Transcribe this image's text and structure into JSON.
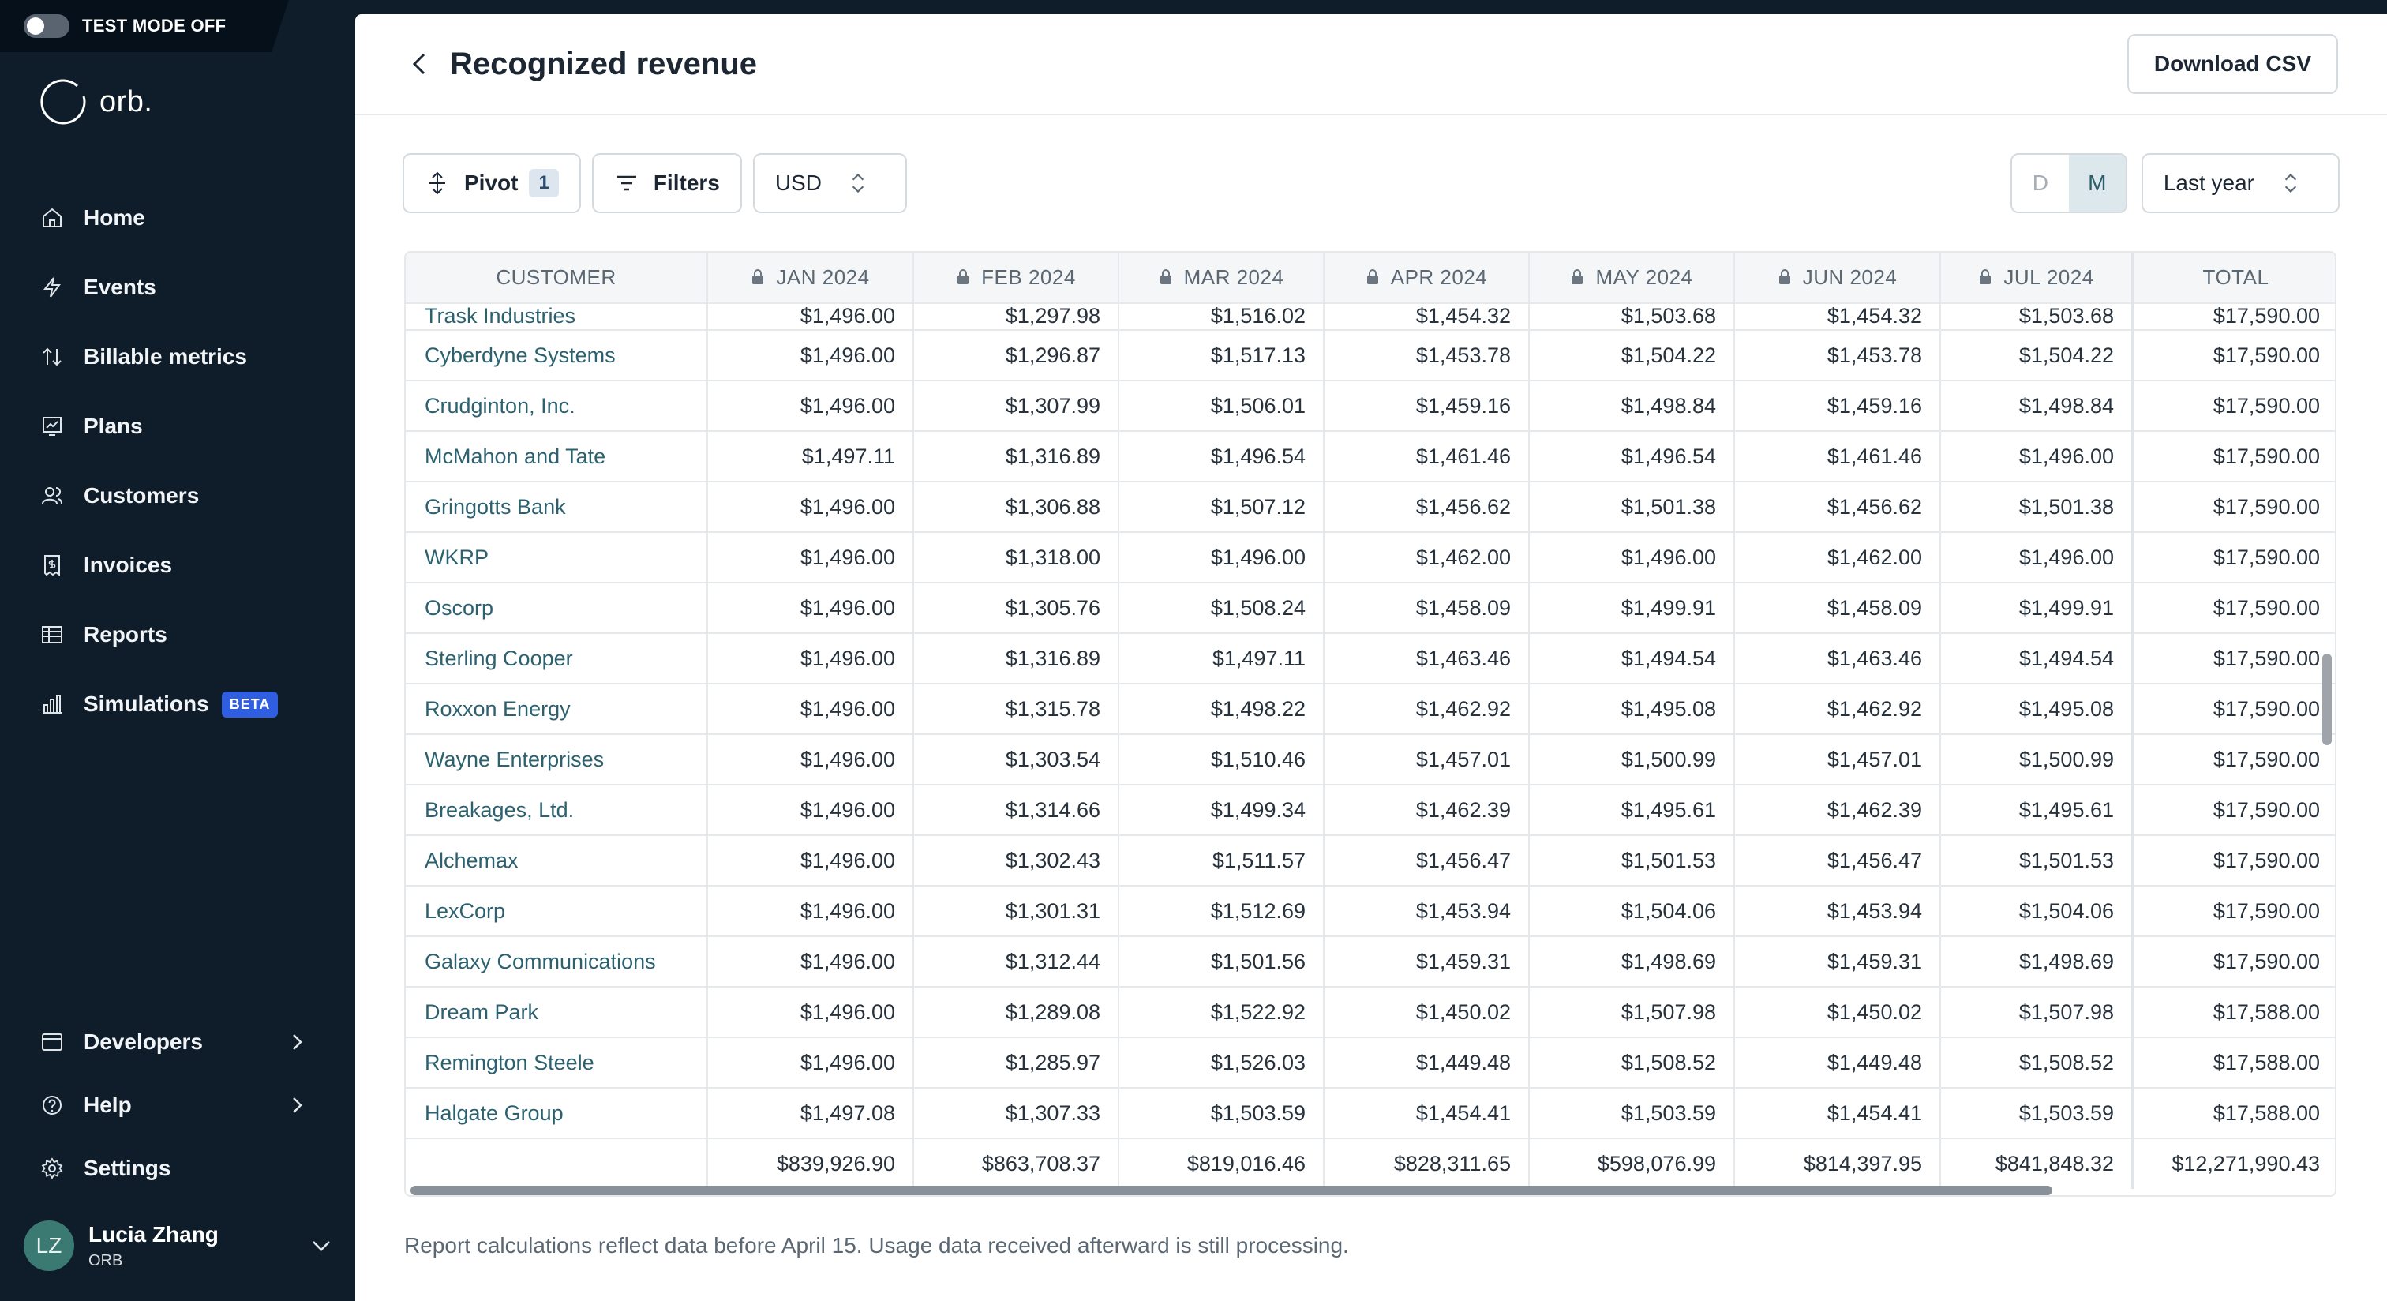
{
  "test_mode": {
    "label": "TEST MODE OFF"
  },
  "logo": {
    "text": "orb."
  },
  "nav": {
    "items": [
      {
        "label": "Home",
        "icon": "home-icon"
      },
      {
        "label": "Events",
        "icon": "lightning-icon"
      },
      {
        "label": "Billable metrics",
        "icon": "arrows-updown-icon"
      },
      {
        "label": "Plans",
        "icon": "plans-icon"
      },
      {
        "label": "Customers",
        "icon": "users-icon"
      },
      {
        "label": "Invoices",
        "icon": "invoice-icon"
      },
      {
        "label": "Reports",
        "icon": "table-icon"
      },
      {
        "label": "Simulations",
        "icon": "bar-chart-icon",
        "badge": "BETA"
      }
    ],
    "bottom": [
      {
        "label": "Developers",
        "icon": "card-icon"
      },
      {
        "label": "Help",
        "icon": "help-icon"
      },
      {
        "label": "Settings",
        "icon": "gear-icon"
      }
    ]
  },
  "user": {
    "initials": "LZ",
    "name": "Lucia Zhang",
    "org": "ORB"
  },
  "header": {
    "title": "Recognized revenue",
    "download_label": "Download CSV"
  },
  "toolbar": {
    "pivot_label": "Pivot",
    "pivot_count": "1",
    "filters_label": "Filters",
    "currency": "USD",
    "granularity": {
      "d": "D",
      "m": "M",
      "selected": "M"
    },
    "period": "Last year"
  },
  "table": {
    "columns": [
      "CUSTOMER",
      "JAN 2024",
      "FEB 2024",
      "MAR 2024",
      "APR 2024",
      "MAY 2024",
      "JUN 2024",
      "JUL 2024",
      "TOTAL"
    ],
    "rows": [
      {
        "customer": "Trask Industries",
        "values": [
          "$1,496.00",
          "$1,297.98",
          "$1,516.02",
          "$1,454.32",
          "$1,503.68",
          "$1,454.32",
          "$1,503.68",
          "$17,590.00"
        ]
      },
      {
        "customer": "Cyberdyne Systems",
        "values": [
          "$1,496.00",
          "$1,296.87",
          "$1,517.13",
          "$1,453.78",
          "$1,504.22",
          "$1,453.78",
          "$1,504.22",
          "$17,590.00"
        ]
      },
      {
        "customer": "Crudginton, Inc.",
        "values": [
          "$1,496.00",
          "$1,307.99",
          "$1,506.01",
          "$1,459.16",
          "$1,498.84",
          "$1,459.16",
          "$1,498.84",
          "$17,590.00"
        ]
      },
      {
        "customer": "McMahon and Tate",
        "values": [
          "$1,497.11",
          "$1,316.89",
          "$1,496.54",
          "$1,461.46",
          "$1,496.54",
          "$1,461.46",
          "$1,496.00",
          "$17,590.00"
        ]
      },
      {
        "customer": "Gringotts Bank",
        "values": [
          "$1,496.00",
          "$1,306.88",
          "$1,507.12",
          "$1,456.62",
          "$1,501.38",
          "$1,456.62",
          "$1,501.38",
          "$17,590.00"
        ]
      },
      {
        "customer": "WKRP",
        "values": [
          "$1,496.00",
          "$1,318.00",
          "$1,496.00",
          "$1,462.00",
          "$1,496.00",
          "$1,462.00",
          "$1,496.00",
          "$17,590.00"
        ]
      },
      {
        "customer": "Oscorp",
        "values": [
          "$1,496.00",
          "$1,305.76",
          "$1,508.24",
          "$1,458.09",
          "$1,499.91",
          "$1,458.09",
          "$1,499.91",
          "$17,590.00"
        ]
      },
      {
        "customer": "Sterling Cooper",
        "values": [
          "$1,496.00",
          "$1,316.89",
          "$1,497.11",
          "$1,463.46",
          "$1,494.54",
          "$1,463.46",
          "$1,494.54",
          "$17,590.00"
        ]
      },
      {
        "customer": "Roxxon Energy",
        "values": [
          "$1,496.00",
          "$1,315.78",
          "$1,498.22",
          "$1,462.92",
          "$1,495.08",
          "$1,462.92",
          "$1,495.08",
          "$17,590.00"
        ]
      },
      {
        "customer": "Wayne Enterprises",
        "values": [
          "$1,496.00",
          "$1,303.54",
          "$1,510.46",
          "$1,457.01",
          "$1,500.99",
          "$1,457.01",
          "$1,500.99",
          "$17,590.00"
        ]
      },
      {
        "customer": "Breakages, Ltd.",
        "values": [
          "$1,496.00",
          "$1,314.66",
          "$1,499.34",
          "$1,462.39",
          "$1,495.61",
          "$1,462.39",
          "$1,495.61",
          "$17,590.00"
        ]
      },
      {
        "customer": "Alchemax",
        "values": [
          "$1,496.00",
          "$1,302.43",
          "$1,511.57",
          "$1,456.47",
          "$1,501.53",
          "$1,456.47",
          "$1,501.53",
          "$17,590.00"
        ]
      },
      {
        "customer": "LexCorp",
        "values": [
          "$1,496.00",
          "$1,301.31",
          "$1,512.69",
          "$1,453.94",
          "$1,504.06",
          "$1,453.94",
          "$1,504.06",
          "$17,590.00"
        ]
      },
      {
        "customer": "Galaxy Communications",
        "values": [
          "$1,496.00",
          "$1,312.44",
          "$1,501.56",
          "$1,459.31",
          "$1,498.69",
          "$1,459.31",
          "$1,498.69",
          "$17,590.00"
        ]
      },
      {
        "customer": "Dream Park",
        "values": [
          "$1,496.00",
          "$1,289.08",
          "$1,522.92",
          "$1,450.02",
          "$1,507.98",
          "$1,450.02",
          "$1,507.98",
          "$17,588.00"
        ]
      },
      {
        "customer": "Remington Steele",
        "values": [
          "$1,496.00",
          "$1,285.97",
          "$1,526.03",
          "$1,449.48",
          "$1,508.52",
          "$1,449.48",
          "$1,508.52",
          "$17,588.00"
        ]
      },
      {
        "customer": "Halgate Group",
        "values": [
          "$1,497.08",
          "$1,307.33",
          "$1,503.59",
          "$1,454.41",
          "$1,503.59",
          "$1,454.41",
          "$1,503.59",
          "$17,588.00"
        ]
      }
    ],
    "totals": [
      "$839,926.90",
      "$863,708.37",
      "$819,016.46",
      "$828,311.65",
      "$598,076.99",
      "$814,397.95",
      "$841,848.32",
      "$12,271,990.43"
    ]
  },
  "footnote": "Report calculations reflect data before April 15. Usage data received afterward is still processing.",
  "colors": {
    "sidebar_bg": "#0f1d2b",
    "link": "#2c6170",
    "beta": "#2f5ee0",
    "active_toggle": "#dce8eb"
  }
}
